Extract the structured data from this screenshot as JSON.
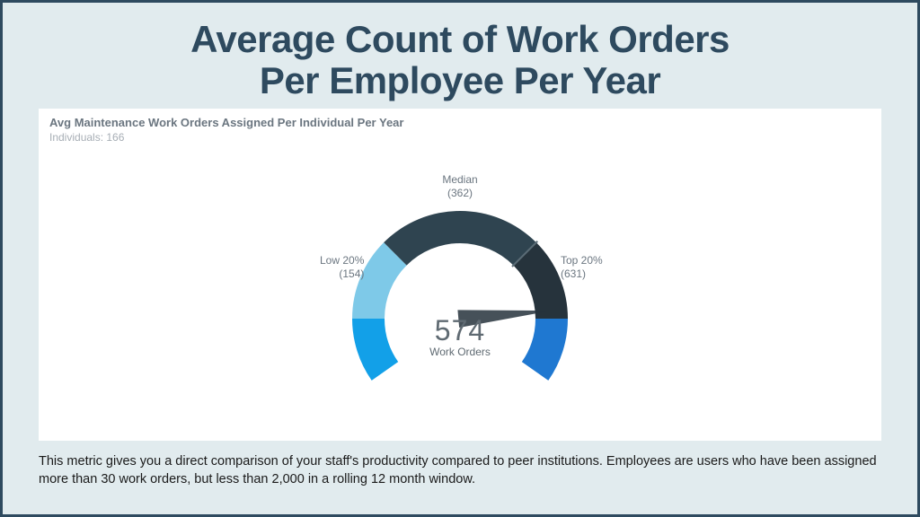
{
  "page": {
    "title_line1": "Average Count of Work Orders",
    "title_line2": "Per Employee Per Year",
    "footer": "This metric gives you a direct comparison of your staff's productivity compared to peer institutions.  Employees are users who have been assigned more than 30 work orders, but less than 2,000 in a rolling  12 month window.",
    "background_color": "#e1ebee",
    "border_color": "#2e4a5f",
    "title_color": "#2e4a5f",
    "title_fontsize_pt": 32
  },
  "chart": {
    "type": "gauge",
    "subtitle": "Avg Maintenance Work Orders Assigned Per Individual Per Year",
    "individuals_label": "Individuals: 166",
    "center_value": "574",
    "center_label": "Work Orders",
    "panel_background": "#ffffff",
    "text_color": "#6b7680",
    "muted_text_color": "#a7aeb5",
    "center_value_fontsize_pt": 24,
    "label_fontsize_pt": 9,
    "start_angle_deg": 215,
    "end_angle_deg": -35,
    "outer_radius": 120,
    "inner_radius": 84,
    "segments": [
      {
        "key": "low_tail",
        "start": 215,
        "end": 180,
        "color": "#12a0e8"
      },
      {
        "key": "low_20",
        "start": 180,
        "end": 135,
        "color": "#7ec9e8"
      },
      {
        "key": "mid",
        "start": 135,
        "end": 45,
        "color": "#2f4450"
      },
      {
        "key": "mid_dark",
        "start": 45,
        "end": 0,
        "color": "#26333c"
      },
      {
        "key": "top_20",
        "start": 0,
        "end": -35,
        "color": "#1f78d1"
      }
    ],
    "labels": {
      "low": {
        "title": "Low 20%",
        "value": "(154)"
      },
      "median": {
        "title": "Median",
        "value": "(362)"
      },
      "top": {
        "title": "Top 20%",
        "value": "(631)"
      }
    },
    "needle": {
      "angle_deg": 5,
      "color": "#26333c",
      "length": 102
    },
    "tick": {
      "angle_deg": 45,
      "color": "#5a6b75"
    }
  }
}
